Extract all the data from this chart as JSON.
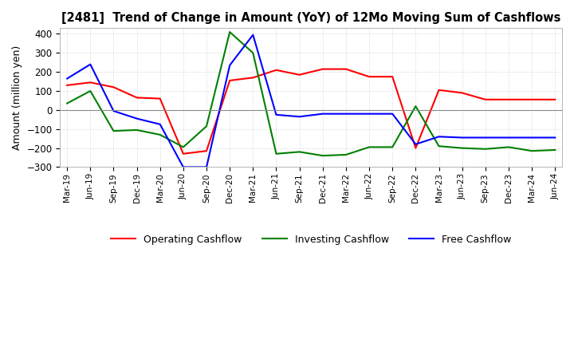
{
  "title": "[2481]  Trend of Change in Amount (YoY) of 12Mo Moving Sum of Cashflows",
  "ylabel": "Amount (million yen)",
  "ylim": [
    -300,
    430
  ],
  "yticks": [
    -300,
    -200,
    -100,
    0,
    100,
    200,
    300,
    400
  ],
  "x_labels": [
    "Mar-19",
    "Jun-19",
    "Sep-19",
    "Dec-19",
    "Mar-20",
    "Jun-20",
    "Sep-20",
    "Dec-20",
    "Mar-21",
    "Jun-21",
    "Sep-21",
    "Dec-21",
    "Mar-22",
    "Jun-22",
    "Sep-22",
    "Dec-22",
    "Mar-23",
    "Jun-23",
    "Sep-23",
    "Dec-23",
    "Mar-24",
    "Jun-24"
  ],
  "operating": [
    130,
    145,
    120,
    65,
    60,
    -230,
    -215,
    155,
    170,
    210,
    185,
    215,
    215,
    175,
    175,
    -200,
    105,
    90,
    55,
    55,
    55,
    55
  ],
  "investing": [
    35,
    100,
    -110,
    -105,
    -130,
    -195,
    -85,
    410,
    300,
    -230,
    -220,
    -240,
    -235,
    -195,
    -195,
    20,
    -190,
    -200,
    -205,
    -195,
    -215,
    -210
  ],
  "free": [
    165,
    240,
    -5,
    -45,
    -75,
    -300,
    -300,
    235,
    395,
    -25,
    -35,
    -20,
    -20,
    -20,
    -20,
    -180,
    -140,
    -145,
    -145,
    -145,
    -145,
    -145
  ],
  "colors": {
    "operating": "#ff0000",
    "investing": "#008000",
    "free": "#0000ff"
  },
  "legend_labels": [
    "Operating Cashflow",
    "Investing Cashflow",
    "Free Cashflow"
  ],
  "background_color": "#ffffff",
  "grid_color": "#cccccc"
}
